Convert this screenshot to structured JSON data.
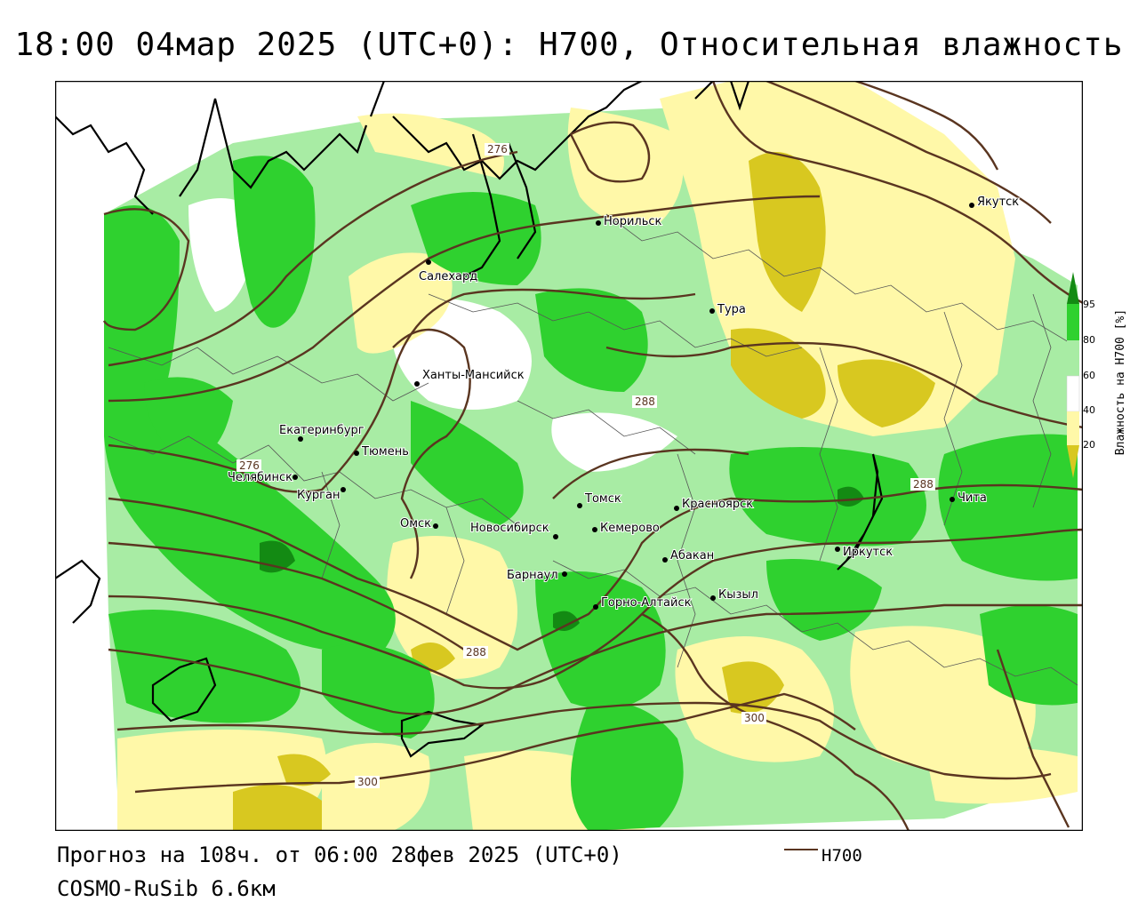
{
  "title": "18:00 04мар 2025 (UTC+0): H700, Относительная влажность",
  "footer": {
    "forecast": "Прогноз на 108ч. от 06:00 28фев 2025 (UTC+0)",
    "model": "COSMO-RuSib 6.6км",
    "contour_legend": "H700"
  },
  "colorbar": {
    "label": "Влажность на H700 [%]",
    "ticks": [
      "95",
      "80",
      "60",
      "40",
      "20"
    ],
    "colors": {
      "above_95": "#138a13",
      "80_95": "#2fd12f",
      "60_80": "#a8eca4",
      "40_60": "#ffffff",
      "20_40": "#fff8a8",
      "below_20": "#d8c820"
    }
  },
  "contour_color": "#5a3520",
  "isoline_labels": [
    "276",
    "276",
    "288",
    "288",
    "288",
    "300",
    "300"
  ],
  "cities": [
    {
      "name": "Якутск"
    },
    {
      "name": "Норильск"
    },
    {
      "name": "Салехард"
    },
    {
      "name": "Тура"
    },
    {
      "name": "Ханты-Мансийск"
    },
    {
      "name": "Екатеринбург"
    },
    {
      "name": "Тюмень"
    },
    {
      "name": "Челябинск"
    },
    {
      "name": "Курган"
    },
    {
      "name": "Томск"
    },
    {
      "name": "Красноярск"
    },
    {
      "name": "Чита"
    },
    {
      "name": "Омск"
    },
    {
      "name": "Новосибирск"
    },
    {
      "name": "Кемерово"
    },
    {
      "name": "Иркутск"
    },
    {
      "name": "Абакан"
    },
    {
      "name": "Барнаул"
    },
    {
      "name": "Кызыл"
    },
    {
      "name": "Горно-Алтайск"
    }
  ]
}
